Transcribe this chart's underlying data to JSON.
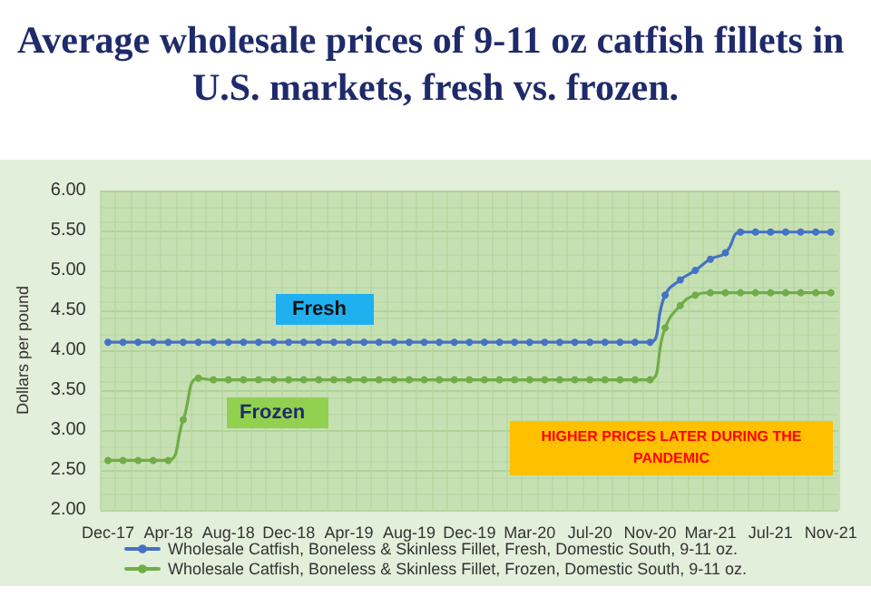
{
  "chart_data": {
    "type": "line",
    "title": "Average wholesale prices of 9-11 oz catfish fillets in U.S. markets, fresh vs. frozen.",
    "ylabel": "Dollars per pound",
    "annotations": [
      "Fresh",
      "Frozen",
      "HIGHER PRICES LATER DURING THE PANDEMIC"
    ],
    "categories": [
      "Dec-17",
      null,
      null,
      null,
      "Apr-18",
      null,
      null,
      null,
      "Aug-18",
      null,
      null,
      null,
      "Dec-18",
      null,
      null,
      null,
      "Apr-19",
      null,
      null,
      null,
      "Aug-19",
      null,
      null,
      null,
      "Dec-19",
      null,
      null,
      null,
      "Mar-20",
      null,
      null,
      null,
      "Jul-20",
      null,
      null,
      null,
      "Nov-20",
      null,
      null,
      null,
      "Mar-21",
      null,
      null,
      null,
      "Jul-21",
      null,
      null,
      null,
      "Nov-21"
    ],
    "series": [
      {
        "name": "Wholesale Catfish, Boneless & Skinless Fillet, Fresh, Domestic South, 9-11 oz.",
        "color": "#4472c4",
        "values": [
          4.1,
          4.1,
          4.1,
          4.1,
          4.1,
          4.1,
          4.1,
          4.1,
          4.1,
          4.1,
          4.1,
          4.1,
          4.1,
          4.1,
          4.1,
          4.1,
          4.1,
          4.1,
          4.1,
          4.1,
          4.1,
          4.1,
          4.1,
          4.1,
          4.1,
          4.1,
          4.1,
          4.1,
          4.1,
          4.1,
          4.1,
          4.1,
          4.1,
          4.1,
          4.1,
          4.1,
          4.1,
          4.69,
          4.88,
          5.0,
          5.14,
          5.22,
          5.48,
          5.48,
          5.48,
          5.48,
          5.48,
          5.48,
          5.48
        ]
      },
      {
        "name": "Wholesale Catfish, Boneless & Skinless Fillet, Frozen, Domestic South, 9-11 oz.",
        "color": "#70ad47",
        "values": [
          2.62,
          2.62,
          2.62,
          2.62,
          2.62,
          3.13,
          3.65,
          3.63,
          3.63,
          3.63,
          3.63,
          3.63,
          3.63,
          3.63,
          3.63,
          3.63,
          3.63,
          3.63,
          3.63,
          3.63,
          3.63,
          3.63,
          3.63,
          3.63,
          3.63,
          3.63,
          3.63,
          3.63,
          3.63,
          3.63,
          3.63,
          3.63,
          3.63,
          3.63,
          3.63,
          3.63,
          3.63,
          4.28,
          4.56,
          4.69,
          4.72,
          4.72,
          4.72,
          4.72,
          4.72,
          4.72,
          4.72,
          4.72,
          4.72
        ]
      }
    ],
    "ylim": [
      2,
      6
    ],
    "yticks": [
      {
        "value": 2,
        "label": "2.00"
      },
      {
        "value": 2.5,
        "label": "2.50"
      },
      {
        "value": 3,
        "label": "3.00"
      },
      {
        "value": 3.5,
        "label": "3.50"
      },
      {
        "value": 4,
        "label": "4.00"
      },
      {
        "value": 4.5,
        "label": "4.50"
      },
      {
        "value": 5,
        "label": "5.00"
      },
      {
        "value": 5.5,
        "label": "5.50"
      },
      {
        "value": 6,
        "label": "6.00"
      }
    ],
    "grid": true,
    "legend": "bottom",
    "marker": "circle"
  }
}
